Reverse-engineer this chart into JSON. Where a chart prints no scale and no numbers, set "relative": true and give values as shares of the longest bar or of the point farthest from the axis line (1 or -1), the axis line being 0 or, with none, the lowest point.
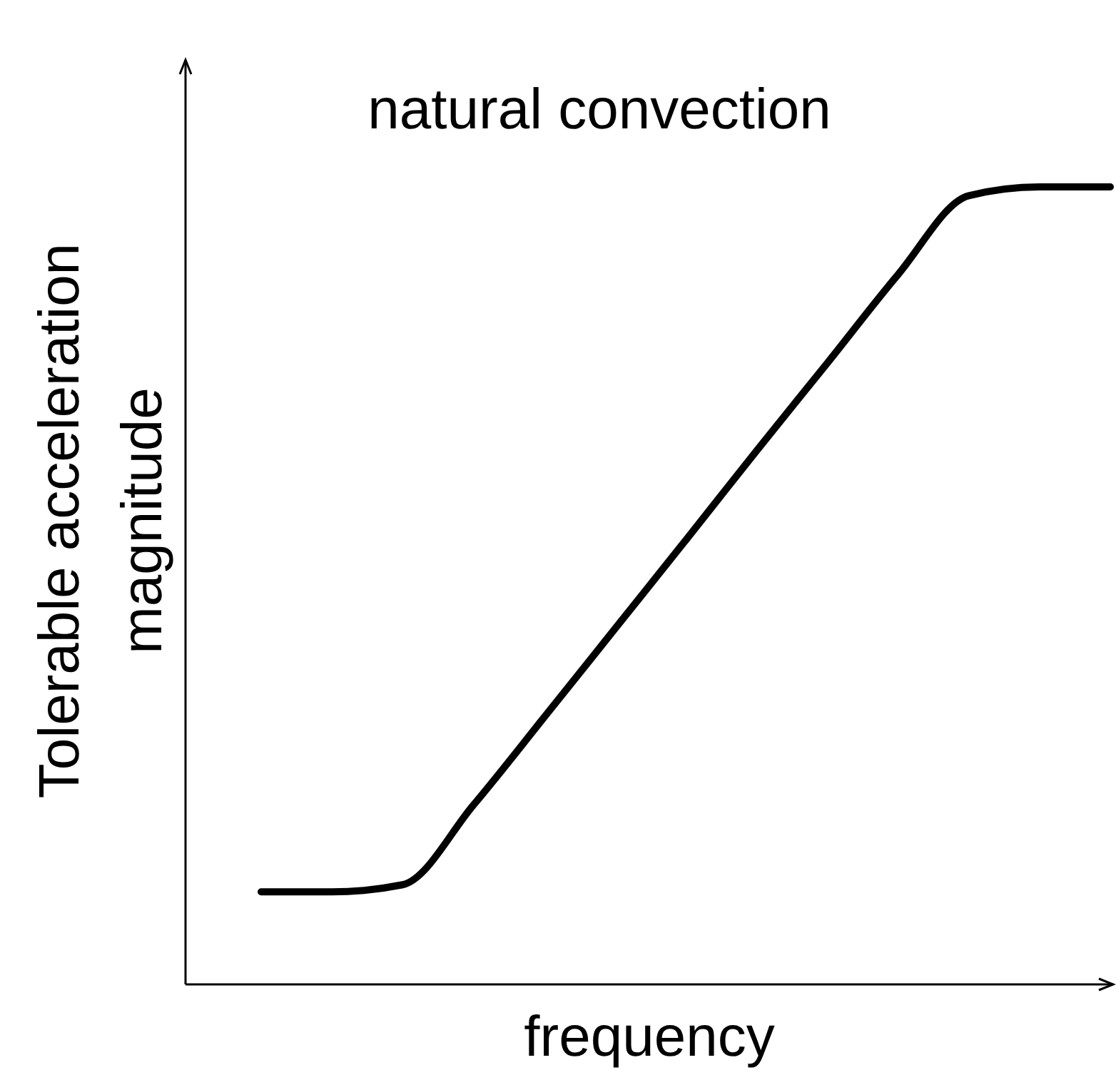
{
  "chart_data": {
    "type": "line",
    "title": "natural convection",
    "xlabel": "frequency",
    "ylabel": "Tolerable acceleration\nmagnitude",
    "relative": true,
    "categories": [
      null,
      null,
      null,
      null,
      null,
      null,
      null,
      null,
      null,
      null,
      null,
      null,
      null
    ],
    "series": [
      {
        "color": "#000000",
        "values": [
          0.116,
          0.116,
          0.125,
          0.225,
          0.335,
          0.446,
          0.557,
          0.669,
          0.779,
          0.89,
          0.989,
          1,
          1
        ]
      }
    ],
    "line_style": "solid"
  }
}
